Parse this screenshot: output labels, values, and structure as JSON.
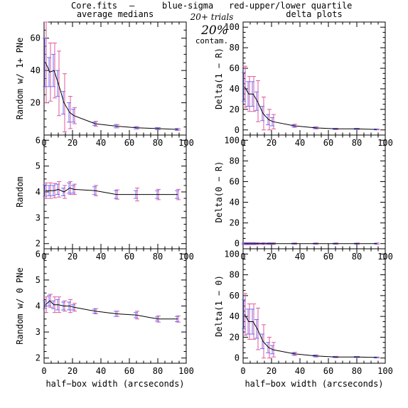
{
  "header": {
    "file": "Core.fits",
    "dash": "–",
    "blue": "blue-sigma",
    "red": "red-upper/lower quartile",
    "blue_color": "#3a3aff",
    "red_color": "#ff3a3a"
  },
  "annotation": {
    "trials": "20+ trials",
    "percent": "20%",
    "contam": "contam."
  },
  "colors": {
    "median_line": "#000000",
    "sigma_bars": "#6f6fff",
    "quartile_bars": "#e05a9a"
  },
  "chart_data": [
    {
      "type": "line",
      "panel": "left-top",
      "title": "average medians",
      "xlabel": "",
      "ylabel": "Random w/ 1+ PNe",
      "xlim": [
        0,
        100
      ],
      "ylim": [
        0,
        70
      ],
      "xticks": [
        0,
        20,
        40,
        60,
        80,
        100
      ],
      "xtick_labels_shown": false,
      "yticks": [
        20,
        40,
        60
      ],
      "x": [
        1,
        4,
        7,
        10,
        14,
        18,
        21,
        36,
        51,
        65,
        80,
        94
      ],
      "y": [
        45,
        39,
        40,
        32,
        20,
        14,
        12,
        7,
        5.5,
        4.5,
        4,
        3.5
      ],
      "sigma": [
        15,
        9,
        10,
        8,
        7,
        6,
        4,
        1,
        1,
        0.7,
        0.6,
        0.6
      ],
      "quartile": [
        25,
        18,
        17,
        20,
        18,
        10,
        5,
        1.5,
        1,
        0.7,
        0.6,
        0.5
      ]
    },
    {
      "type": "line",
      "panel": "right-top",
      "title": "delta plots",
      "xlabel": "",
      "ylabel": "Delta(1 − R)",
      "xlim": [
        0,
        100
      ],
      "ylim": [
        -5,
        105
      ],
      "xticks": [
        0,
        20,
        40,
        60,
        80,
        100
      ],
      "xtick_labels_shown": false,
      "yticks": [
        0,
        20,
        40,
        60,
        80,
        100
      ],
      "x": [
        1,
        4,
        7,
        10,
        14,
        18,
        21,
        36,
        51,
        65,
        80,
        94
      ],
      "y": [
        42,
        35,
        35,
        28,
        16,
        10,
        8,
        4,
        2,
        1,
        1,
        0.5
      ],
      "sigma": [
        14,
        12,
        12,
        9,
        7,
        5,
        4,
        1,
        0.8,
        0.5,
        0.5,
        0.4
      ],
      "quartile": [
        20,
        17,
        17,
        20,
        16,
        10,
        7,
        1.5,
        1,
        0.6,
        0.5,
        0.4
      ]
    },
    {
      "type": "line",
      "panel": "left-middle",
      "ylabel": "Random",
      "xlim": [
        0,
        100
      ],
      "ylim": [
        1.8,
        6.2
      ],
      "xticks": [
        0,
        20,
        40,
        60,
        80,
        100
      ],
      "xtick_labels_shown": false,
      "yticks": [
        2,
        3,
        4,
        5,
        6
      ],
      "x": [
        1,
        4,
        7,
        10,
        14,
        18,
        21,
        36,
        51,
        65,
        80,
        94
      ],
      "y": [
        4.05,
        4.05,
        4.05,
        4.1,
        4.0,
        4.15,
        4.1,
        4.05,
        3.9,
        3.9,
        3.9,
        3.9
      ],
      "sigma": [
        0.22,
        0.2,
        0.2,
        0.2,
        0.15,
        0.2,
        0.15,
        0.15,
        0.15,
        0.15,
        0.15,
        0.15
      ],
      "quartile": [
        0.3,
        0.3,
        0.28,
        0.3,
        0.25,
        0.25,
        0.2,
        0.2,
        0.18,
        0.25,
        0.2,
        0.2
      ]
    },
    {
      "type": "line",
      "panel": "right-middle",
      "ylabel": "Delta(0 − R)",
      "xlim": [
        0,
        100
      ],
      "ylim": [
        -5,
        105
      ],
      "xticks": [
        0,
        20,
        40,
        60,
        80,
        100
      ],
      "xtick_labels_shown": false,
      "yticks": [
        0,
        20,
        40,
        60,
        80,
        100
      ],
      "x": [
        1,
        4,
        7,
        10,
        14,
        18,
        21,
        36,
        51,
        65,
        80,
        94
      ],
      "y": [
        0,
        0,
        0,
        0,
        0,
        0,
        0,
        0,
        0,
        0,
        0,
        0
      ],
      "sigma": [
        0.6,
        0.6,
        0.6,
        0.5,
        0.5,
        0.5,
        0.5,
        0.4,
        0.4,
        0.4,
        0.4,
        0.4
      ],
      "quartile": [
        1,
        1,
        1,
        0.8,
        0.8,
        0.8,
        0.8,
        0.6,
        0.6,
        0.6,
        0.6,
        0.6
      ]
    },
    {
      "type": "line",
      "panel": "left-bottom",
      "ylabel": "Random w/ 0 PNe",
      "xlabel": "half−box width (arcseconds)",
      "xlim": [
        0,
        100
      ],
      "ylim": [
        1.8,
        6.2
      ],
      "xticks": [
        0,
        20,
        40,
        60,
        80,
        100
      ],
      "xtick_labels_shown": true,
      "yticks": [
        2,
        3,
        4,
        5,
        6
      ],
      "x": [
        1,
        4,
        7,
        10,
        14,
        18,
        21,
        36,
        51,
        65,
        80,
        94
      ],
      "y": [
        4.05,
        4.2,
        4.05,
        4.05,
        4.0,
        4.0,
        3.95,
        3.8,
        3.7,
        3.65,
        3.5,
        3.5
      ],
      "sigma": [
        0.15,
        0.2,
        0.15,
        0.2,
        0.15,
        0.15,
        0.1,
        0.08,
        0.1,
        0.1,
        0.08,
        0.1
      ],
      "quartile": [
        0.3,
        0.25,
        0.3,
        0.3,
        0.2,
        0.25,
        0.15,
        0.1,
        0.1,
        0.15,
        0.12,
        0.12
      ]
    },
    {
      "type": "line",
      "panel": "right-bottom",
      "ylabel": "Delta(1 − 0)",
      "xlabel": "half−box width (arcseconds)",
      "xlim": [
        0,
        100
      ],
      "ylim": [
        -5,
        105
      ],
      "xticks": [
        0,
        20,
        40,
        60,
        80,
        100
      ],
      "xtick_labels_shown": true,
      "yticks": [
        0,
        20,
        40,
        60,
        80,
        100
      ],
      "x": [
        1,
        4,
        7,
        10,
        14,
        18,
        21,
        36,
        51,
        65,
        80,
        94
      ],
      "y": [
        42,
        35,
        35,
        28,
        16,
        10,
        8,
        4,
        2,
        1,
        1,
        0.5
      ],
      "sigma": [
        14,
        12,
        12,
        9,
        7,
        5,
        4,
        1,
        0.8,
        0.5,
        0.5,
        0.4
      ],
      "quartile": [
        20,
        17,
        17,
        20,
        16,
        10,
        7,
        1.5,
        1,
        0.6,
        0.5,
        0.4
      ]
    }
  ]
}
